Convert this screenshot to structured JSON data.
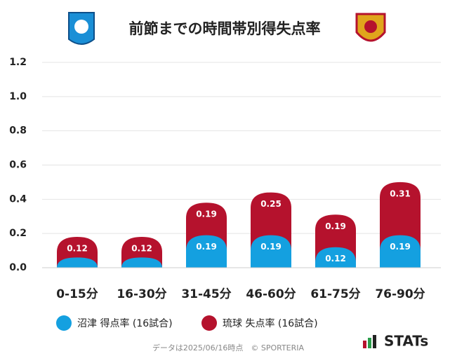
{
  "chart_data": {
    "type": "stacked-bar",
    "title": "前節までの時間帯別得失点率",
    "categories": [
      "0-15分",
      "16-30分",
      "31-45分",
      "46-60分",
      "61-75分",
      "76-90分"
    ],
    "series": [
      {
        "name": "沼津 得点率 (16試合)",
        "color": "#14a0e0",
        "values": [
          0.06,
          0.06,
          0.19,
          0.19,
          0.12,
          0.19
        ]
      },
      {
        "name": "琉球 失点率 (16試合)",
        "color": "#b5122d",
        "values": [
          0.12,
          0.12,
          0.19,
          0.25,
          0.19,
          0.31
        ]
      }
    ],
    "ylim": [
      0,
      1.2
    ],
    "yticks": [
      {
        "value": 0,
        "label": "0.0"
      },
      0.2,
      0.4,
      0.6,
      0.8,
      {
        "value": 1,
        "label": "1.0"
      },
      1.2
    ],
    "grid": true,
    "source": "データは2025/06/16時点　© SPORTERIA",
    "brand": "STATs"
  }
}
